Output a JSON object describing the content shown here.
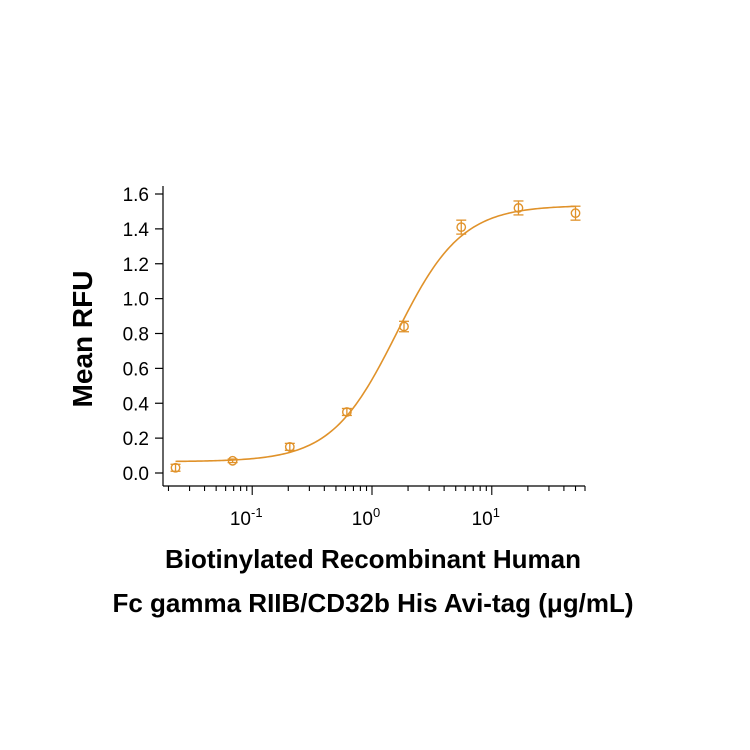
{
  "chart_data": {
    "type": "scatter",
    "x_scale": "log",
    "xlim": [
      0.018,
      60
    ],
    "ylim": [
      0.0,
      1.6
    ],
    "y_ticks": [
      "0.0",
      "0.2",
      "0.4",
      "0.6",
      "0.8",
      "1.0",
      "1.2",
      "1.4",
      "1.6"
    ],
    "x_ticks": [
      {
        "base": "10",
        "exp": "-1",
        "value": 0.1
      },
      {
        "base": "10",
        "exp": "0",
        "value": 1
      },
      {
        "base": "10",
        "exp": "1",
        "value": 10
      }
    ],
    "ylabel": "Mean RFU",
    "xlabel_line1": "Biotinylated Recombinant Human",
    "xlabel_line2": "Fc gamma RIIB/CD32b His Avi-tag (μg/mL)",
    "color": "#E0922A",
    "grid": false,
    "points": [
      {
        "x": 0.0229,
        "y": 0.03,
        "err": 0.02
      },
      {
        "x": 0.0686,
        "y": 0.07,
        "err": 0.01
      },
      {
        "x": 0.206,
        "y": 0.15,
        "err": 0.02
      },
      {
        "x": 0.617,
        "y": 0.35,
        "err": 0.02
      },
      {
        "x": 1.85,
        "y": 0.84,
        "err": 0.03
      },
      {
        "x": 5.56,
        "y": 1.41,
        "err": 0.04
      },
      {
        "x": 16.7,
        "y": 1.52,
        "err": 0.04
      },
      {
        "x": 50.0,
        "y": 1.49,
        "err": 0.04
      }
    ],
    "fit": {
      "model": "4PL",
      "bottom": 0.065,
      "top": 1.535,
      "ec50": 1.6,
      "hill": 1.6
    }
  }
}
